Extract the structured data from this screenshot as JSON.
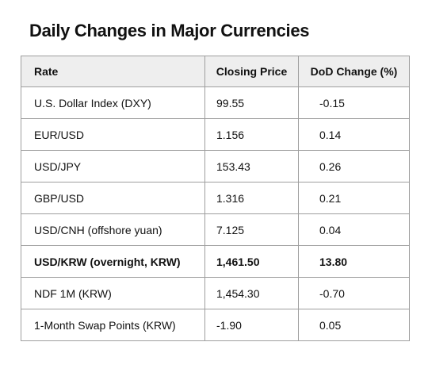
{
  "title": "Daily Changes in Major Currencies",
  "table": {
    "headers": [
      "Rate",
      "Closing Price",
      "DoD Change (%)"
    ],
    "rows": [
      {
        "rate": "U.S. Dollar Index (DXY)",
        "closing_price": "99.55",
        "dod_change": "-0.15",
        "bold": false
      },
      {
        "rate": "EUR/USD",
        "closing_price": "1.156",
        "dod_change": "0.14",
        "bold": false
      },
      {
        "rate": "USD/JPY",
        "closing_price": "153.43",
        "dod_change": "0.26",
        "bold": false
      },
      {
        "rate": "GBP/USD",
        "closing_price": "1.316",
        "dod_change": "0.21",
        "bold": false
      },
      {
        "rate": "USD/CNH (offshore yuan)",
        "closing_price": "7.125",
        "dod_change": "0.04",
        "bold": false
      },
      {
        "rate": "USD/KRW (overnight, KRW)",
        "closing_price": "1,461.50",
        "dod_change": "13.80",
        "bold": true
      },
      {
        "rate": "NDF 1M (KRW)",
        "closing_price": "1,454.30",
        "dod_change": "-0.70",
        "bold": false
      },
      {
        "rate": "1-Month Swap Points (KRW)",
        "closing_price": "-1.90",
        "dod_change": "0.05",
        "bold": false
      }
    ]
  }
}
